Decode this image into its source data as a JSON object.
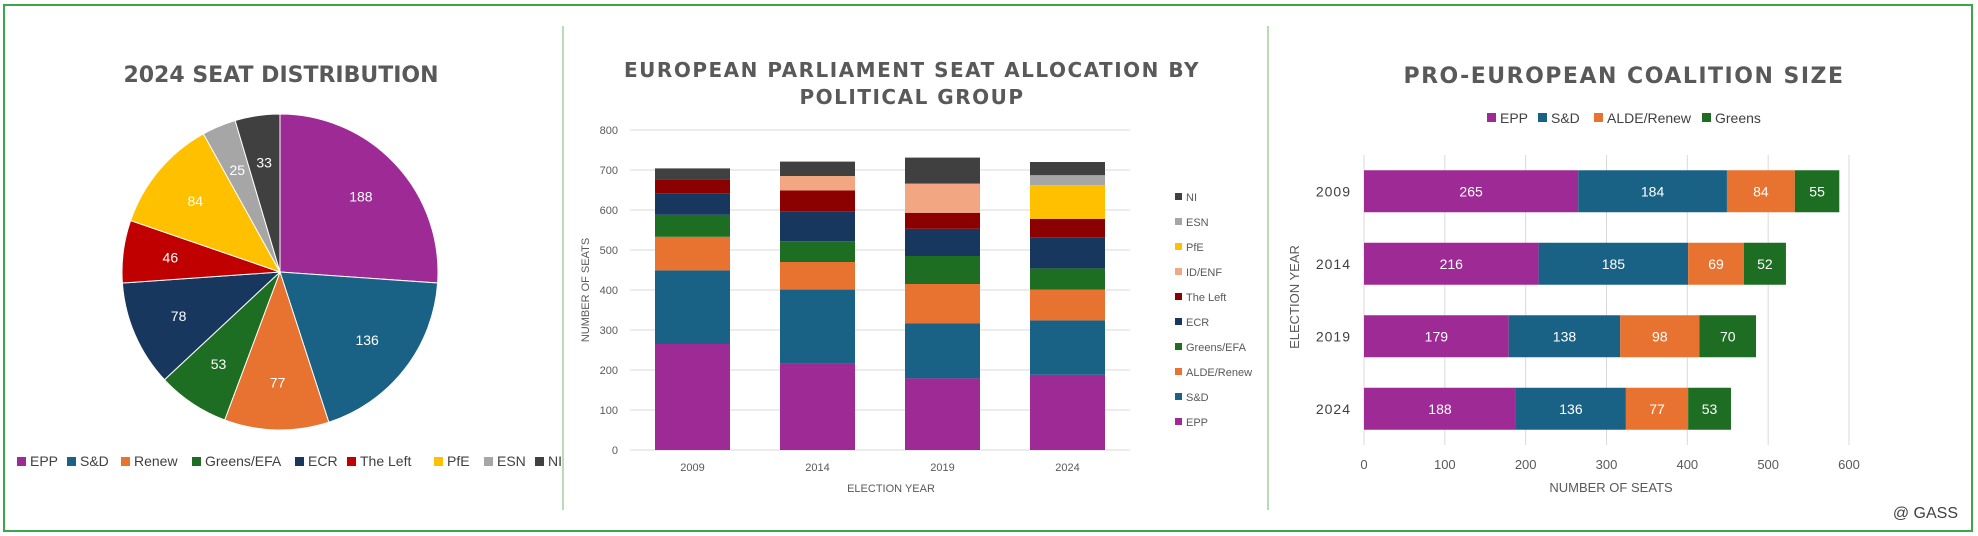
{
  "credit": "@ GASS",
  "colors": {
    "EPP": "#9e2a96",
    "S&D": "#1a6285",
    "Renew": "#e8722f",
    "Greens/EFA": "#1d6e22",
    "ECR": "#17375e",
    "The Left": "#c00000",
    "PfE": "#ffc000",
    "ESN": "#a6a6a6",
    "NI": "#404040",
    "ID/ENF": "#f2a682",
    "The Left dark": "#8b0000"
  },
  "chart_data": [
    {
      "type": "pie",
      "title": "2024 SEAT DISTRIBUTION",
      "categories": [
        "EPP",
        "S&D",
        "Renew",
        "Greens/EFA",
        "ECR",
        "The Left",
        "PfE",
        "ESN",
        "NI"
      ],
      "values": [
        188,
        136,
        77,
        53,
        78,
        46,
        84,
        25,
        33
      ],
      "legend": "bottom"
    },
    {
      "type": "bar",
      "stacked": true,
      "title": "EUROPEAN PARLIAMENT SEAT ALLOCATION BY POLITICAL GROUP",
      "xlabel": "ELECTION YEAR",
      "ylabel": "NUMBER OF SEATS",
      "categories": [
        "2009",
        "2014",
        "2019",
        "2024"
      ],
      "ylim": [
        0,
        800
      ],
      "yticks": [
        "0",
        "100",
        "200",
        "300",
        "400",
        "500",
        "600",
        "700",
        "800"
      ],
      "grid": true,
      "legend": "right",
      "series": [
        {
          "name": "EPP",
          "values": [
            265,
            216,
            179,
            188
          ]
        },
        {
          "name": "S&D",
          "values": [
            184,
            185,
            138,
            136
          ]
        },
        {
          "name": "ALDE/Renew",
          "values": [
            84,
            69,
            98,
            77
          ]
        },
        {
          "name": "Greens/EFA",
          "values": [
            55,
            52,
            70,
            53
          ]
        },
        {
          "name": "ECR",
          "values": [
            54,
            75,
            68,
            78
          ]
        },
        {
          "name": "The Left",
          "values": [
            35,
            52,
            40,
            46
          ]
        },
        {
          "name": "ID/ENF",
          "values": [
            0,
            36,
            73,
            0
          ]
        },
        {
          "name": "PfE",
          "values": [
            0,
            0,
            0,
            84
          ]
        },
        {
          "name": "ESN",
          "values": [
            0,
            0,
            0,
            25
          ]
        },
        {
          "name": "NI",
          "values": [
            27,
            36,
            65,
            33
          ]
        }
      ]
    },
    {
      "type": "bar",
      "orientation": "horizontal",
      "stacked": true,
      "title": "PRO-EUROPEAN COALITION SIZE",
      "xlabel": "NUMBER OF SEATS",
      "ylabel": "ELECTION YEAR",
      "categories": [
        "2009",
        "2014",
        "2019",
        "2024"
      ],
      "xlim": [
        0,
        600
      ],
      "xticks": [
        "0",
        "100",
        "200",
        "300",
        "400",
        "500",
        "600"
      ],
      "grid": true,
      "legend": "top",
      "series": [
        {
          "name": "EPP",
          "values": [
            265,
            216,
            179,
            188
          ]
        },
        {
          "name": "S&D",
          "values": [
            184,
            185,
            138,
            136
          ]
        },
        {
          "name": "ALDE/Renew",
          "values": [
            84,
            69,
            98,
            77
          ]
        },
        {
          "name": "Greens",
          "values": [
            55,
            52,
            70,
            53
          ]
        }
      ]
    }
  ]
}
